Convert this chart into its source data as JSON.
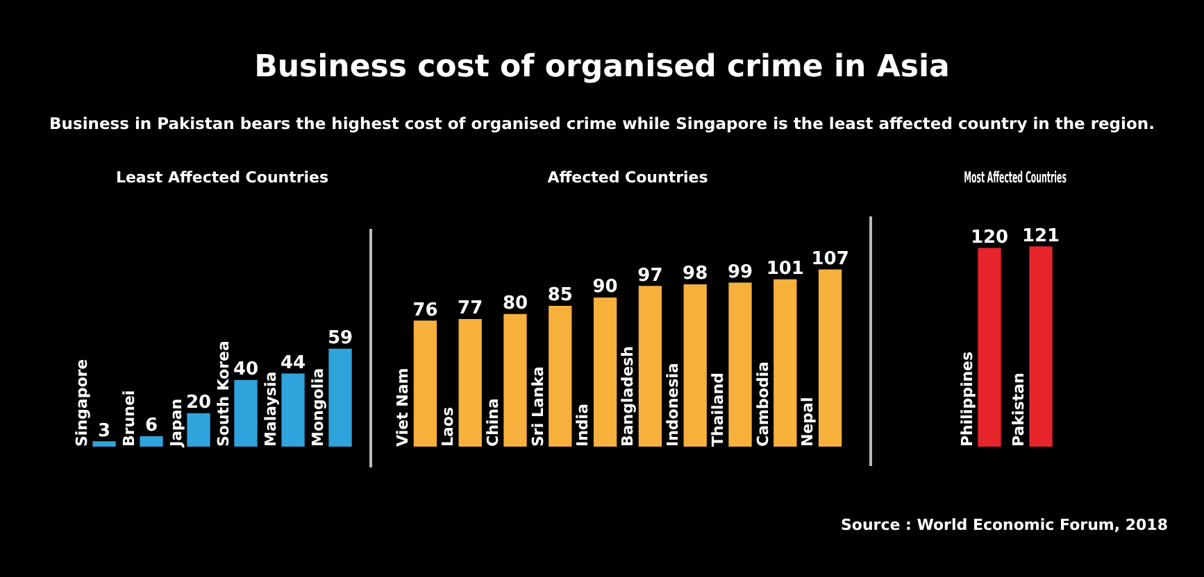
{
  "chart_data": [
    {
      "type": "other",
      "title": "Business cost of organised crime in Asia",
      "subtitle": "Business in Pakistan bears the highest cost of organised crime while Singapore is the least affected country in the region."
    },
    {
      "type": "bar",
      "title": "Least Affected Countries",
      "categories": [
        "Singapore",
        "Brunei",
        "Japan",
        "South Korea",
        "Malaysia",
        "Mongolia"
      ],
      "values": [
        3,
        6,
        20,
        40,
        44,
        59
      ],
      "color": "#2ea3dc",
      "data_labels": true
    },
    {
      "type": "bar",
      "title": "Affected Countries",
      "categories": [
        "Viet Nam",
        "Laos",
        "China",
        "Sri Lanka",
        "India",
        "Bangladesh",
        "Indonesia",
        "Thailand",
        "Cambodia",
        "Nepal"
      ],
      "values": [
        76,
        77,
        80,
        85,
        90,
        97,
        98,
        99,
        101,
        107
      ],
      "color": "#f7b03c",
      "data_labels": true
    },
    {
      "type": "bar",
      "title": "Most Affected Countries",
      "categories": [
        "Philippines",
        "Pakistan"
      ],
      "values": [
        120,
        121
      ],
      "color": "#e8252b",
      "data_labels": true,
      "annotations": [
        "Source : World Economic Forum, 2018"
      ]
    }
  ]
}
